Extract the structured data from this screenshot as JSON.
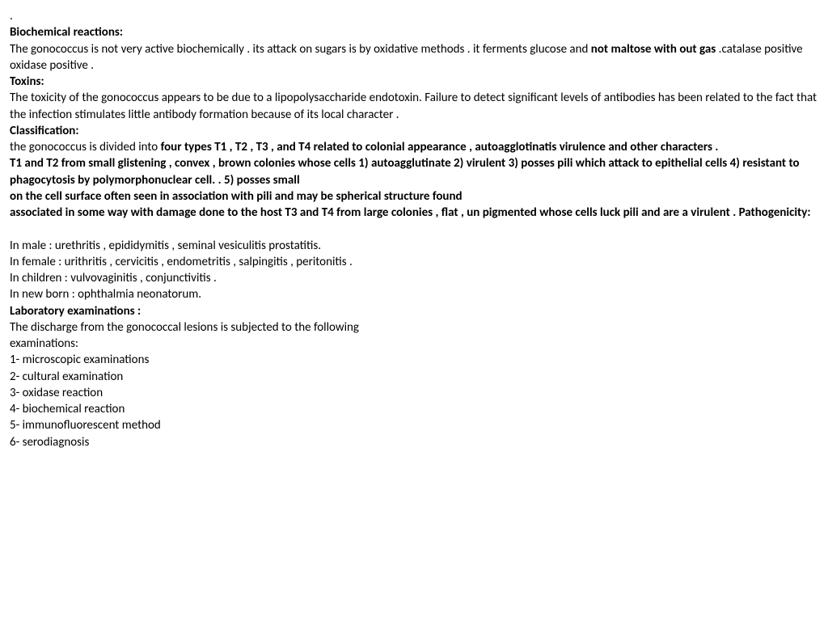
{
  "dot1": ".",
  "sec1_h": "Biochemical reactions:",
  "sec1_p1a": "The gonococcus is not very active biochemically . its attack on sugars is by oxidative methods . it ferments glucose and  ",
  "sec1_p1b": "not maltose with out gas ",
  "sec1_p1c": ".catalase positive oxidase positive .",
  "sec2_h": "Toxins:",
  "sec2_p1": "The toxicity of the gonococcus appears to be due to a lipopolysaccharide endotoxin. Failure to detect significant   levels of antibodies has been related to the fact that the infection stimulates little antibody formation because of its local character .",
  "sec3_h": "Classification:",
  "sec3_p1a": "the gonococcus is divided into ",
  "sec3_p1b": "four types T1 , T2 , T3 , and T4 related to colonial appearance , autoagglotinatis virulence and other characters .",
  "sec3_p2": "T1 and T2 from small glistening , convex , brown colonies whose cells 1) autoagglutinate  2) virulent  3) posses pili which attack to epithelial cells    4) resistant to phagocytosis  by polymorphonuclear cell.                             . 5) posses small",
  "sec3_p3": "on the cell surface often seen in  association  with    pili and may be   spherical structure found",
  "sec3_p4a": "associated in some way with damage done to the host T3 and T4 from large colonies , flat , un pigmented whose cells luck pili and are a virulent .          ",
  "sec3_p4b": "Pathogenicity:",
  "path_m": "In male : urethritis , epididymitis , seminal vesiculitis prostatitis.",
  "path_f": "In female : urithritis , cervicitis , endometritis , salpingitis , peritonitis .",
  "path_c": "In children : vulvovaginitis , conjunctivitis .",
  "path_n": "In new born : ophthalmia  neonatorum.",
  "sec4_h": "Laboratory examinations :",
  "sec4_p1": "The discharge from the gonococcal lesions is subjected to the following",
  "sec4_p2": "examinations:",
  "e1": " 1- microscopic examinations",
  "e2": " 2- cultural examination",
  "e3": " 3- oxidase reaction",
  "e4": " 4- biochemical reaction",
  "e5": " 5- immunofluorescent method",
  "e6": " 6- serodiagnosis"
}
